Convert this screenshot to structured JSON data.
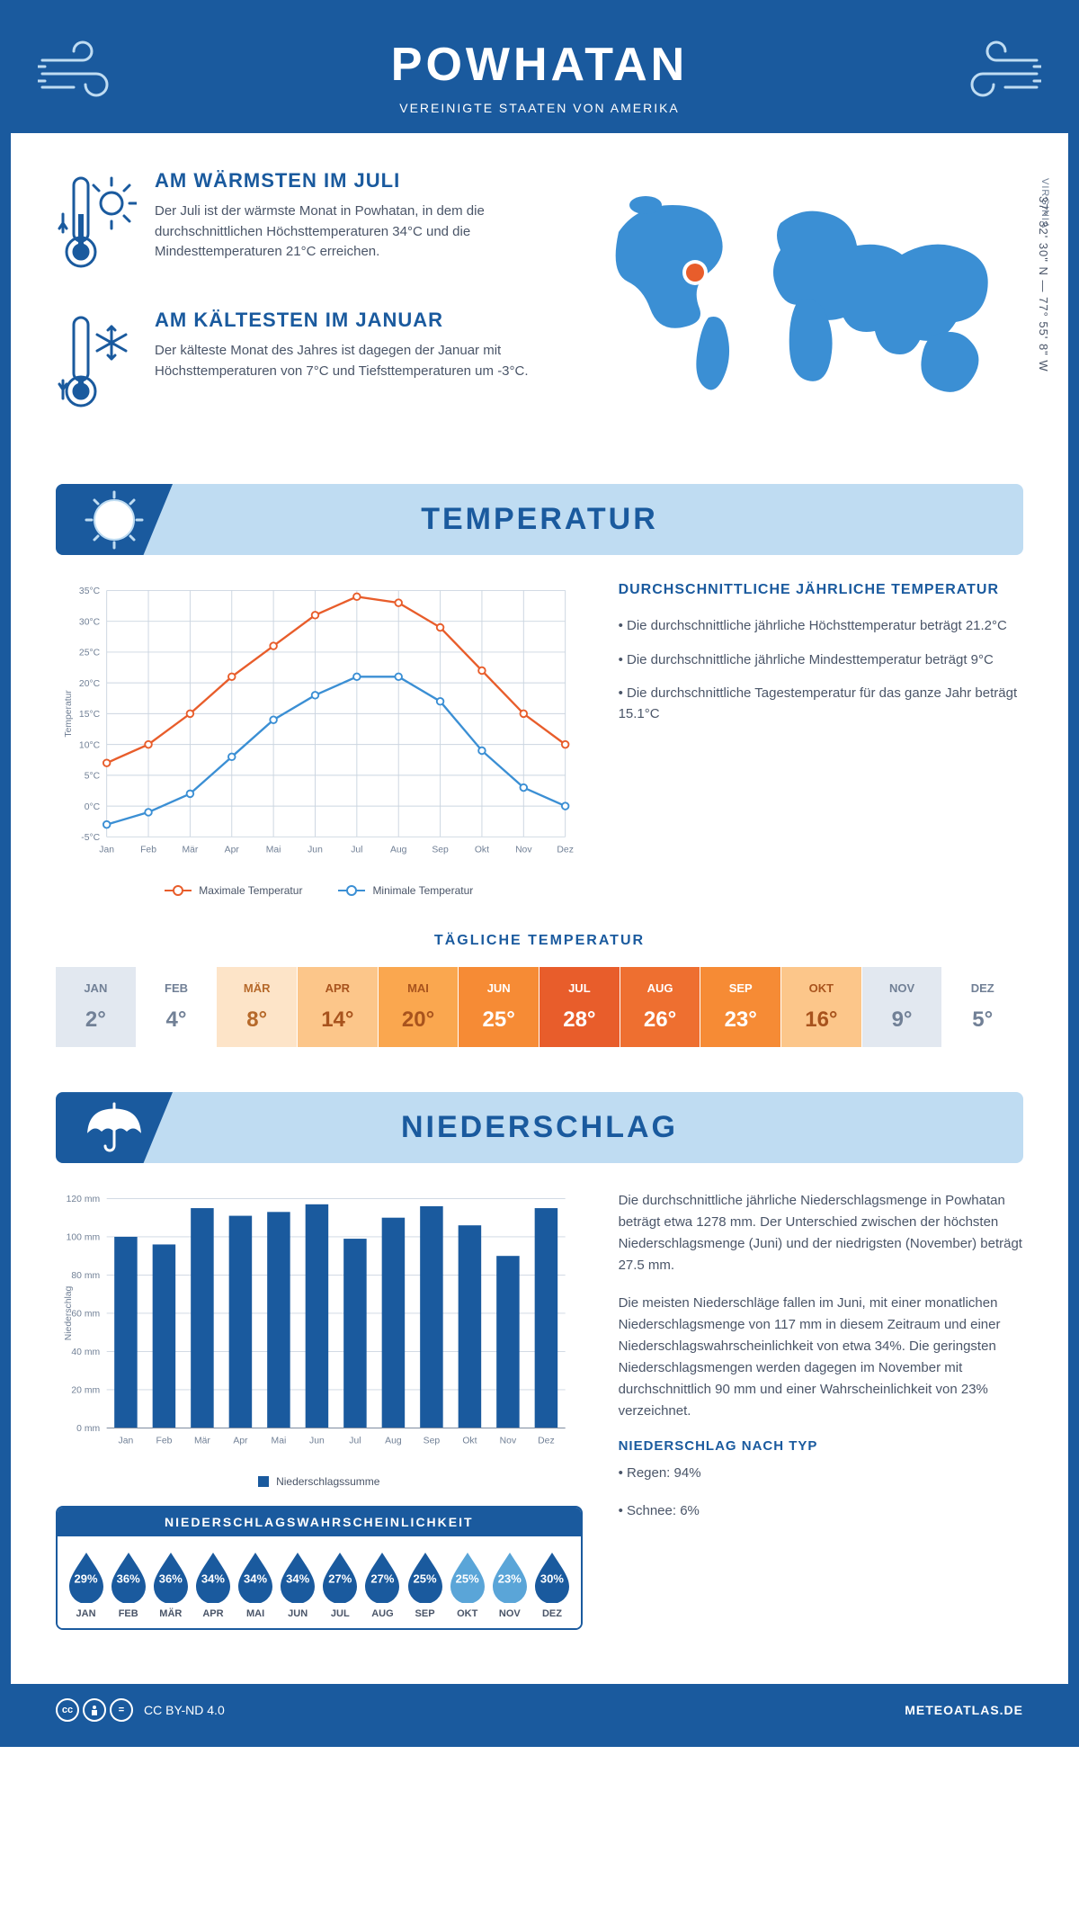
{
  "header": {
    "title": "POWHATAN",
    "subtitle": "VEREINIGTE STAATEN VON AMERIKA"
  },
  "intro": {
    "warm": {
      "title": "AM WÄRMSTEN IM JULI",
      "text": "Der Juli ist der wärmste Monat in Powhatan, in dem die durchschnittlichen Höchsttemperaturen 34°C und die Mindesttemperaturen 21°C erreichen."
    },
    "cold": {
      "title": "AM KÄLTESTEN IM JANUAR",
      "text": "Der kälteste Monat des Jahres ist dagegen der Januar mit Höchsttemperaturen von 7°C und Tiefsttemperaturen um -3°C."
    },
    "region": "VIRGINIA",
    "coords": "37° 32' 30\" N — 77° 55' 8\" W"
  },
  "temperature": {
    "section_title": "TEMPERATUR",
    "chart": {
      "months": [
        "Jan",
        "Feb",
        "Mär",
        "Apr",
        "Mai",
        "Jun",
        "Jul",
        "Aug",
        "Sep",
        "Okt",
        "Nov",
        "Dez"
      ],
      "max": [
        7,
        10,
        15,
        21,
        26,
        31,
        34,
        33,
        29,
        22,
        15,
        10
      ],
      "min": [
        -3,
        -1,
        2,
        8,
        14,
        18,
        21,
        21,
        17,
        9,
        3,
        0
      ],
      "ylabel": "Temperatur",
      "ymin": -5,
      "ymax": 35,
      "ystep": 5,
      "max_color": "#e85d2b",
      "min_color": "#3b8fd4",
      "grid_color": "#cbd5e0",
      "legend_max": "Maximale Temperatur",
      "legend_min": "Minimale Temperatur"
    },
    "text": {
      "title": "DURCHSCHNITTLICHE JÄHRLICHE TEMPERATUR",
      "p1": "• Die durchschnittliche jährliche Höchsttemperatur beträgt 21.2°C",
      "p2": "• Die durchschnittliche jährliche Mindesttemperatur beträgt 9°C",
      "p3": "• Die durchschnittliche Tagestemperatur für das ganze Jahr beträgt 15.1°C"
    },
    "daily": {
      "title": "TÄGLICHE TEMPERATUR",
      "months": [
        "JAN",
        "FEB",
        "MÄR",
        "APR",
        "MAI",
        "JUN",
        "JUL",
        "AUG",
        "SEP",
        "OKT",
        "NOV",
        "DEZ"
      ],
      "values": [
        "2°",
        "4°",
        "8°",
        "14°",
        "20°",
        "25°",
        "28°",
        "26°",
        "23°",
        "16°",
        "9°",
        "5°"
      ],
      "bg_colors": [
        "#e2e8f0",
        "#ffffff",
        "#fde4c8",
        "#fcc68a",
        "#faa74f",
        "#f68b35",
        "#e85d2b",
        "#ee6f30",
        "#f68b35",
        "#fcc68a",
        "#e2e8f0",
        "#ffffff"
      ],
      "text_colors": [
        "#718096",
        "#718096",
        "#b6692a",
        "#a8531d",
        "#a8531d",
        "#ffffff",
        "#ffffff",
        "#ffffff",
        "#ffffff",
        "#a8531d",
        "#718096",
        "#718096"
      ]
    }
  },
  "precip": {
    "section_title": "NIEDERSCHLAG",
    "chart": {
      "months": [
        "Jan",
        "Feb",
        "Mär",
        "Apr",
        "Mai",
        "Jun",
        "Jul",
        "Aug",
        "Sep",
        "Okt",
        "Nov",
        "Dez"
      ],
      "values": [
        100,
        96,
        115,
        111,
        113,
        117,
        99,
        110,
        116,
        106,
        90,
        115
      ],
      "ylabel": "Niederschlag",
      "ymin": 0,
      "ymax": 120,
      "ystep": 20,
      "bar_color": "#1a5a9e",
      "grid_color": "#cbd5e0",
      "legend": "Niederschlagssumme"
    },
    "text": {
      "p1": "Die durchschnittliche jährliche Niederschlagsmenge in Powhatan beträgt etwa 1278 mm. Der Unterschied zwischen der höchsten Niederschlagsmenge (Juni) und der niedrigsten (November) beträgt 27.5 mm.",
      "p2": "Die meisten Niederschläge fallen im Juni, mit einer monatlichen Niederschlagsmenge von 117 mm in diesem Zeitraum und einer Niederschlagswahrscheinlichkeit von etwa 34%. Die geringsten Niederschlagsmengen werden dagegen im November mit durchschnittlich 90 mm und einer Wahrscheinlichkeit von 23% verzeichnet.",
      "type_title": "NIEDERSCHLAG NACH TYP",
      "type_1": "• Regen: 94%",
      "type_2": "• Schnee: 6%"
    },
    "prob": {
      "title": "NIEDERSCHLAGSWAHRSCHEINLICHKEIT",
      "months": [
        "JAN",
        "FEB",
        "MÄR",
        "APR",
        "MAI",
        "JUN",
        "JUL",
        "AUG",
        "SEP",
        "OKT",
        "NOV",
        "DEZ"
      ],
      "values": [
        "29%",
        "36%",
        "36%",
        "34%",
        "34%",
        "34%",
        "27%",
        "27%",
        "25%",
        "25%",
        "23%",
        "30%"
      ],
      "colors": [
        "#1a5a9e",
        "#1a5a9e",
        "#1a5a9e",
        "#1a5a9e",
        "#1a5a9e",
        "#1a5a9e",
        "#1a5a9e",
        "#1a5a9e",
        "#1a5a9e",
        "#5aa5d8",
        "#5aa5d8",
        "#1a5a9e"
      ]
    }
  },
  "footer": {
    "license": "CC BY-ND 4.0",
    "site": "METEOATLAS.DE"
  },
  "colors": {
    "brand": "#1a5a9e",
    "band": "#bfdcf2",
    "accent": "#e85d2b"
  }
}
